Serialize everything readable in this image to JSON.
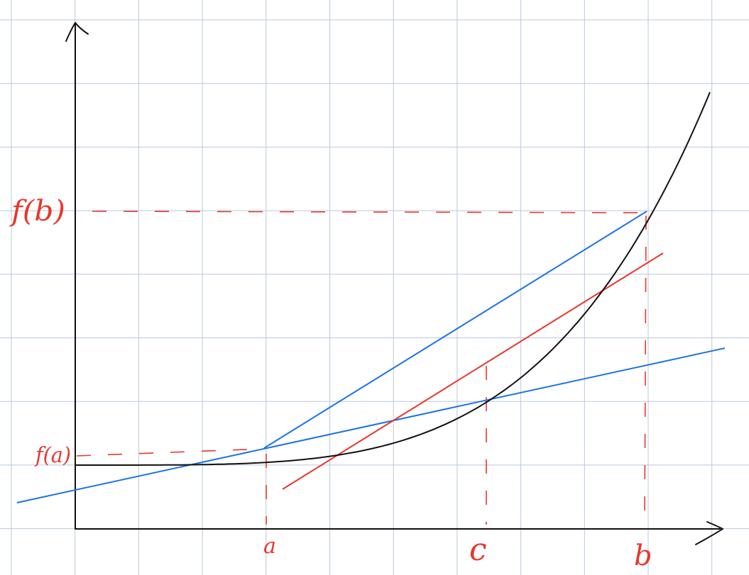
{
  "diagram": {
    "labels": {
      "f_b": "f(b)",
      "f_a": "f(a)",
      "a": "a",
      "c": "c",
      "b": "b"
    },
    "colors": {
      "grid": "#b9c8db",
      "curve": "#111111",
      "secant_and_tangent_at_a": "#1a73e8",
      "tangent_at_c_and_guides": "#e8372c"
    }
  }
}
